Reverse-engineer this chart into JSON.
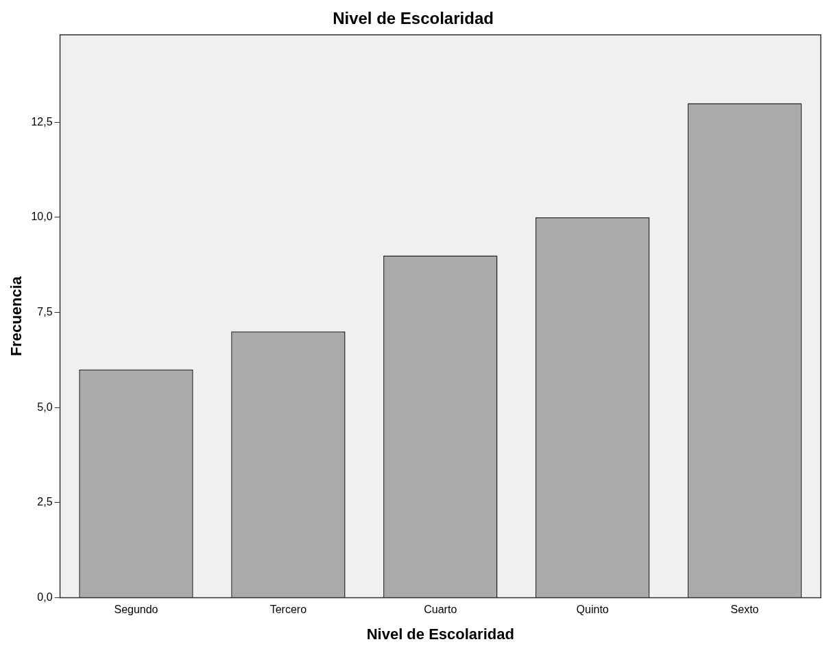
{
  "chart_data": {
    "type": "bar",
    "title": "Nivel de Escolaridad",
    "xlabel": "Nivel de Escolaridad",
    "ylabel": "Frecuencia",
    "categories": [
      "Segundo",
      "Tercero",
      "Cuarto",
      "Quinto",
      "Sexto"
    ],
    "values": [
      6,
      7,
      9,
      10,
      13
    ],
    "color": "#aaaaaa",
    "ylim": [
      0,
      14.8
    ],
    "yticks": [
      {
        "value": 0,
        "label": "0,0"
      },
      {
        "value": 2.5,
        "label": "2,5"
      },
      {
        "value": 5,
        "label": "5,0"
      },
      {
        "value": 7.5,
        "label": "7,5"
      },
      {
        "value": 10,
        "label": "10,0"
      },
      {
        "value": 12.5,
        "label": "12,5"
      }
    ],
    "grid": false
  }
}
